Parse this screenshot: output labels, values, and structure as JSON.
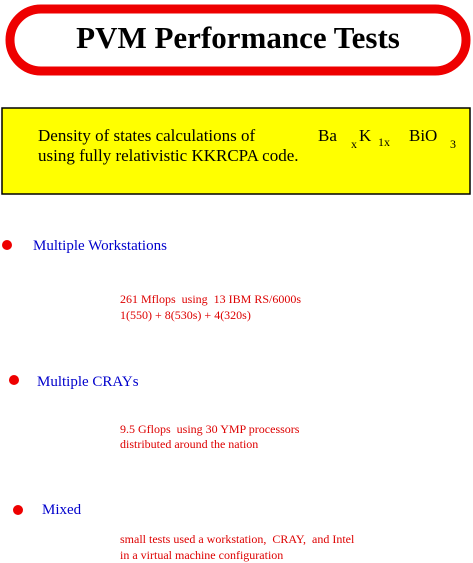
{
  "header": {
    "title": "PVM Performance Tests"
  },
  "summary": {
    "line1": {
      "text": "Density of states calculations of",
      "formula": [
        "Ba",
        "x",
        "K",
        "1x",
        "BiO",
        "3"
      ]
    },
    "line2": "using fully relativistic KKRCPA code."
  },
  "sections": [
    {
      "label": "Multiple Workstations",
      "details": [
        "261 Mflops  using  13 IBM RS/6000s",
        "1(550) + 8(530s) + 4(320s)"
      ]
    },
    {
      "label": "Multiple CRAYs",
      "details": [
        "9.5 Gflops  using 30 YMP processors",
        "distributed around the nation"
      ]
    },
    {
      "label": "Mixed",
      "details": [
        "small tests used a workstation,  CRAY,  and Intel",
        "in a virtual machine configuration"
      ]
    }
  ]
}
